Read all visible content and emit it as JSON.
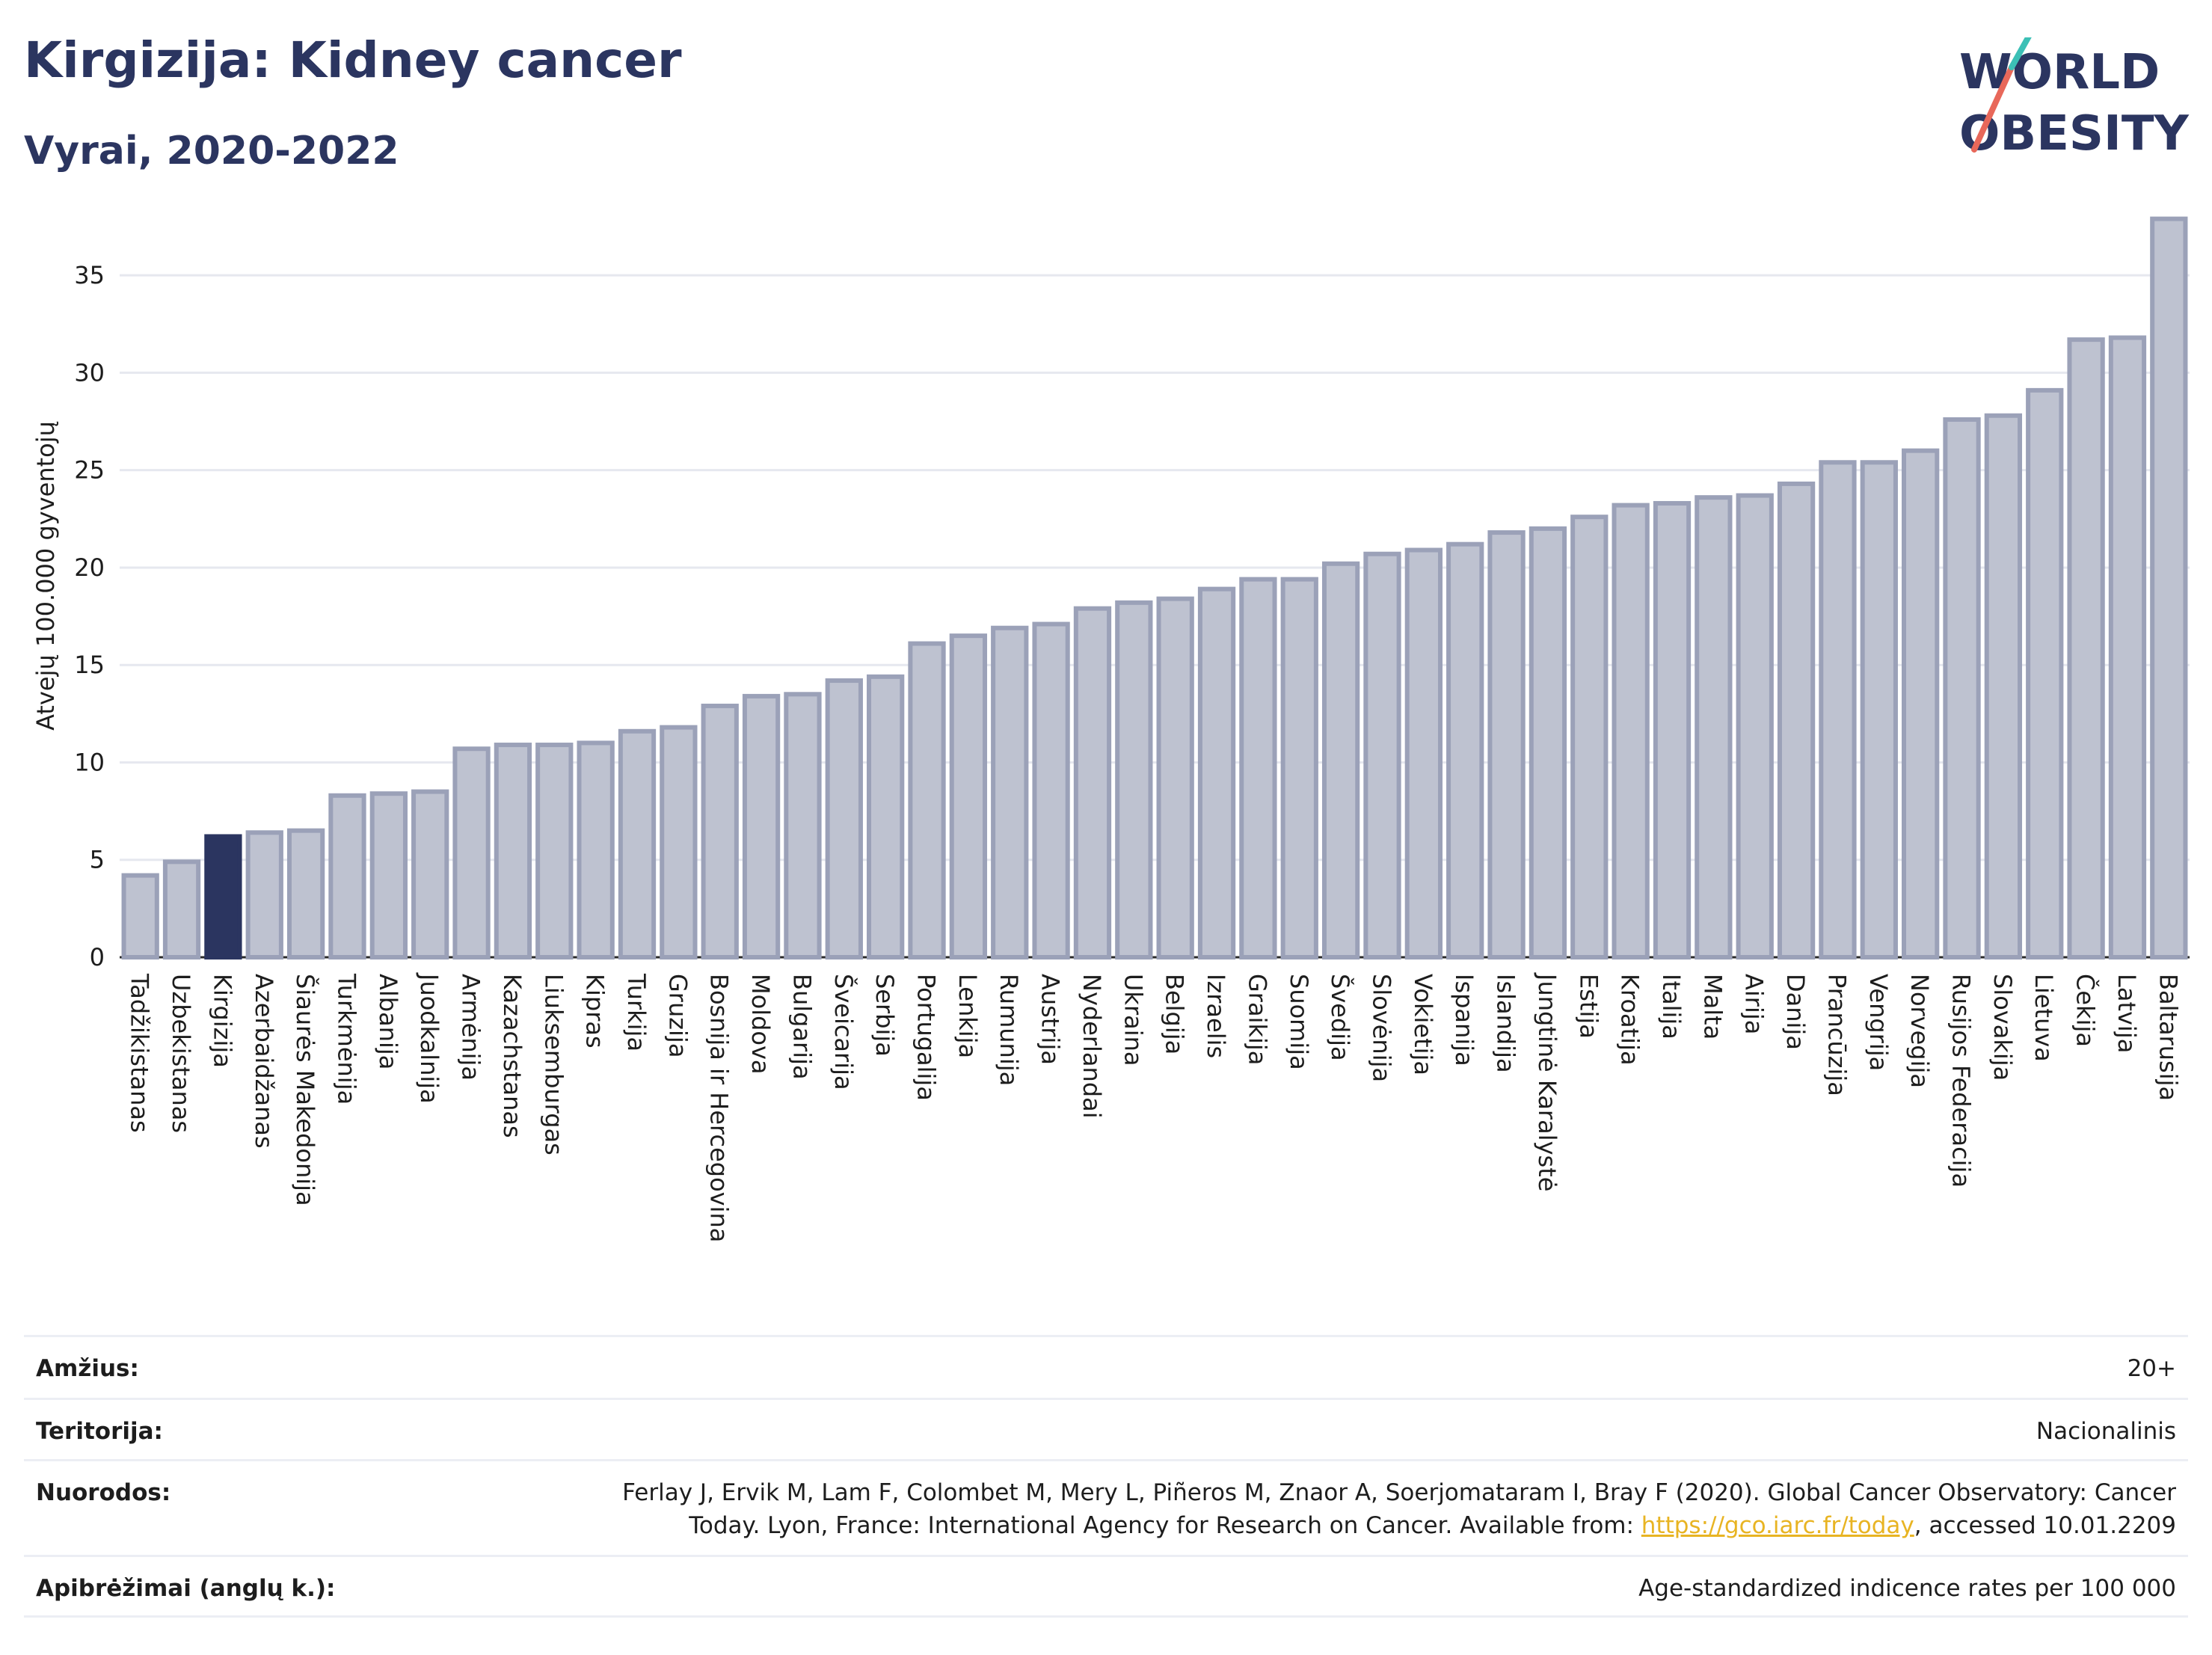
{
  "header": {
    "title": "Kirgizija: Kidney cancer",
    "subtitle": "Vyrai, 2020-2022"
  },
  "logo": {
    "line1": "WORLD",
    "line2": "OBESITY"
  },
  "colors": {
    "bar": "#bec2d0",
    "bar_stroke": "#9ba1b8",
    "highlight": "#2b3560",
    "grid": "#e6e8ef",
    "text": "#1d1d1d",
    "link": "#e8b423"
  },
  "chart_data": {
    "type": "bar",
    "ylabel": "Atvejų 100.000 gyventojų",
    "ylim": [
      0,
      38
    ],
    "yticks": [
      0,
      5,
      10,
      15,
      20,
      25,
      30,
      35
    ],
    "grid": true,
    "highlight": "Kirgizija",
    "categories": [
      "Tadžikistanas",
      "Uzbekistanas",
      "Kirgizija",
      "Azerbaidžanas",
      "Šiaurės Makedonija",
      "Turkmėnija",
      "Albanija",
      "Juodkalnija",
      "Armėnija",
      "Kazachstanas",
      "Liuksemburgas",
      "Kipras",
      "Turkija",
      "Gruzija",
      "Bosnija ir Hercegovina",
      "Moldova",
      "Bulgarija",
      "Šveicarija",
      "Serbija",
      "Portugalija",
      "Lenkija",
      "Rumunija",
      "Austrija",
      "Nyderlandai",
      "Ukraina",
      "Belgija",
      "Izraelis",
      "Graikija",
      "Suomija",
      "Švedija",
      "Slovėnija",
      "Vokietija",
      "Ispanija",
      "Islandija",
      "Jungtinė Karalystė",
      "Estija",
      "Kroatija",
      "Italija",
      "Malta",
      "Airija",
      "Danija",
      "Prancūzija",
      "Vengrija",
      "Norvegija",
      "Rusijos Federacija",
      "Slovakija",
      "Lietuva",
      "Čekija",
      "Latvija",
      "Baltarusija"
    ],
    "values": [
      4.2,
      4.9,
      6.2,
      6.4,
      6.5,
      8.3,
      8.4,
      8.5,
      10.7,
      10.9,
      10.9,
      11.0,
      11.6,
      11.8,
      12.9,
      13.4,
      13.5,
      14.2,
      14.4,
      16.1,
      16.5,
      16.9,
      17.1,
      17.9,
      18.2,
      18.4,
      18.9,
      19.4,
      19.4,
      20.2,
      20.7,
      20.9,
      21.2,
      21.8,
      22.0,
      22.6,
      23.2,
      23.3,
      23.6,
      23.7,
      24.3,
      25.4,
      25.4,
      26.0,
      27.6,
      27.8,
      29.1,
      31.7,
      31.8,
      37.9
    ]
  },
  "meta": {
    "age_label": "Amžius:",
    "age_value": "20+",
    "territory_label": "Teritorija:",
    "territory_value": "Nacionalinis",
    "refs_label": "Nuorodos:",
    "refs_line1": "Ferlay J, Ervik M, Lam F, Colombet M, Mery L, Piñeros M, Znaor A, Soerjomataram I, Bray F (2020). Global Cancer Observatory: Cancer",
    "refs_line2_pre": "Today. Lyon, France: International Agency for Research on Cancer. Available from: ",
    "refs_link": "https://gco.iarc.fr/today",
    "refs_line2_post": ", accessed 10.01.2209",
    "defs_label": "Apibrėžimai (anglų k.):",
    "defs_value": "Age-standardized indicence rates per 100 000"
  }
}
